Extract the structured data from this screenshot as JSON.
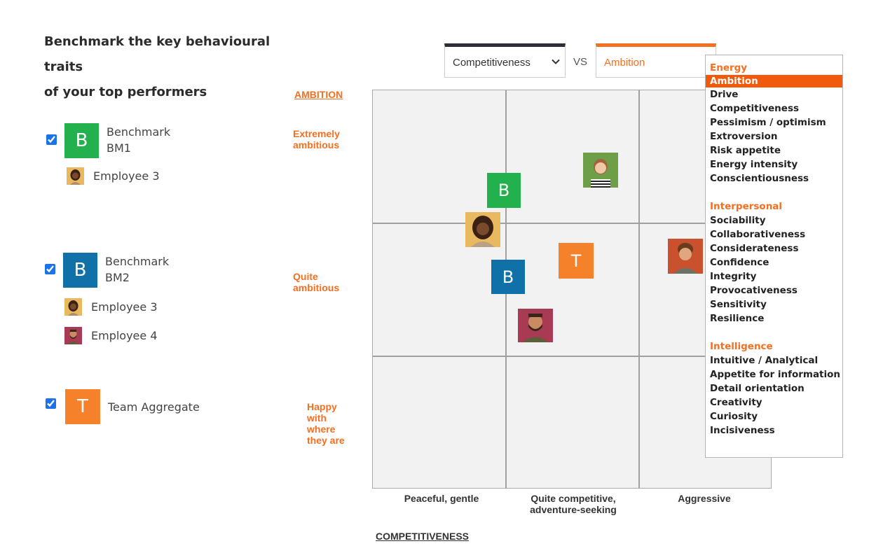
{
  "heading": {
    "line1": "Benchmark the key behavioural traits",
    "line2": "of your top performers"
  },
  "groups": [
    {
      "tile_letter": "B",
      "tile_color": "#22b14c",
      "label_line1": "Benchmark",
      "label_line2": "BM1",
      "checked": true,
      "employees": [
        "Employee 3"
      ]
    },
    {
      "tile_letter": "B",
      "tile_color": "#0f71a8",
      "label_line1": "Benchmark",
      "label_line2": "BM2",
      "checked": true,
      "employees": [
        "Employee 3",
        "Employee 4"
      ]
    },
    {
      "tile_letter": "T",
      "tile_color": "#f5822b",
      "label_line1": "Team Aggregate",
      "checked": true,
      "employees": []
    }
  ],
  "selectors": {
    "x_value": "Competitiveness",
    "vs": "VS",
    "y_value": "Ambition"
  },
  "y_axis": {
    "title": "AMBITION",
    "levels": [
      [
        "Extremely",
        "ambitious"
      ],
      [
        "Quite",
        "ambitious"
      ],
      [
        "Happy",
        "with",
        "where",
        "they are"
      ]
    ]
  },
  "x_axis": {
    "title": "COMPETITIVENESS",
    "levels": [
      [
        "Peaceful, gentle"
      ],
      [
        "Quite competitive,",
        "adventure-seeking"
      ],
      [
        "Aggressive"
      ]
    ]
  },
  "markers": [
    {
      "type": "tile",
      "letter": "B",
      "color": "#22b14c",
      "name": "Benchmark BM1"
    },
    {
      "type": "tile",
      "letter": "B",
      "color": "#0f71a8",
      "name": "Benchmark BM2"
    },
    {
      "type": "tile",
      "letter": "T",
      "color": "#f5822b",
      "name": "Team Aggregate"
    },
    {
      "type": "avatar",
      "name": "Employee 3"
    },
    {
      "type": "avatar",
      "name": "employee-woman-green"
    },
    {
      "type": "avatar",
      "name": "employee-man-red"
    },
    {
      "type": "avatar",
      "name": "Employee 4"
    }
  ],
  "dropdown": {
    "selected": "Ambition",
    "groups": [
      {
        "title": "Energy",
        "items": [
          "Ambition",
          "Drive",
          "Competitiveness",
          "Pessimism / optimism",
          "Extroversion",
          "Risk appetite",
          "Energy intensity",
          "Conscientiousness"
        ]
      },
      {
        "title": "Interpersonal",
        "items": [
          "Sociability",
          "Collaborativeness",
          "Considerateness",
          "Confidence",
          "Integrity",
          "Provocativeness",
          "Sensitivity",
          "Resilience"
        ]
      },
      {
        "title": "Intelligence",
        "items": [
          "Intuitive / Analytical",
          "Appetite for information",
          "Detail orientation",
          "Creativity",
          "Curiosity",
          "Incisiveness"
        ]
      }
    ]
  },
  "colors": {
    "accent": "#f36f21",
    "bm1": "#22b14c",
    "bm2": "#0f71a8",
    "team": "#f5822b",
    "grid_bg": "#f2f2f2"
  }
}
